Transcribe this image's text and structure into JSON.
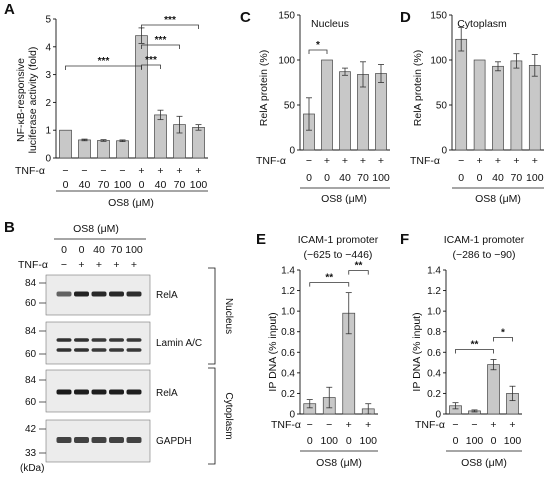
{
  "figure": {
    "condition_rows": {
      "tnf_label": "TNF-α",
      "tnf_4": [
        "−",
        "−",
        "+",
        "+"
      ],
      "tnf_5": [
        "−",
        "+",
        "+",
        "+",
        "+"
      ],
      "tnf_8": [
        "−",
        "−",
        "−",
        "−",
        "+",
        "+",
        "+",
        "+"
      ],
      "os8_4": [
        "0",
        "100",
        "0",
        "100"
      ],
      "os8_5": [
        "0",
        "0",
        "40",
        "70",
        "100"
      ],
      "os8_8": [
        "0",
        "40",
        "70",
        "100",
        "0",
        "40",
        "70",
        "100"
      ],
      "group_label": "OS8 (μM)"
    }
  },
  "chart_data": [
    {
      "id": "A",
      "panel_label": "A",
      "type": "bar",
      "title": "",
      "ylabel": "NF-κB-responsive luciferase activity (fold)",
      "ylabel_lines": [
        "NF-κB-responsive",
        "luciferase activity (fold)"
      ],
      "ylim": [
        0,
        5
      ],
      "yticks": [
        "0",
        "1",
        "2",
        "3",
        "4",
        "5"
      ],
      "values": [
        1.0,
        0.65,
        0.63,
        0.62,
        4.4,
        1.55,
        1.2,
        1.1
      ],
      "errors": [
        0.0,
        0.03,
        0.03,
        0.03,
        0.28,
        0.17,
        0.3,
        0.1
      ],
      "significance": [
        {
          "from": 0,
          "to": 4,
          "label": "***"
        },
        {
          "from": 4,
          "to": 5,
          "label": "***"
        },
        {
          "from": 4,
          "to": 6,
          "label": "***"
        },
        {
          "from": 4,
          "to": 7,
          "label": "***"
        }
      ]
    },
    {
      "id": "C",
      "panel_label": "C",
      "type": "bar",
      "title": "Nucleus",
      "ylabel": "RelA protein (%)",
      "ylim": [
        0,
        150
      ],
      "yticks": [
        "0",
        "50",
        "100",
        "150"
      ],
      "values": [
        40,
        100,
        87,
        84,
        85
      ],
      "errors": [
        18,
        0,
        4,
        14,
        10
      ],
      "significance": [
        {
          "from": 0,
          "to": 1,
          "label": "*"
        }
      ]
    },
    {
      "id": "D",
      "panel_label": "D",
      "type": "bar",
      "title": "Cytoplasm",
      "ylabel": "RelA protein (%)",
      "ylim": [
        0,
        150
      ],
      "yticks": [
        "0",
        "50",
        "100",
        "150"
      ],
      "values": [
        123,
        100,
        93,
        99,
        94
      ],
      "errors": [
        13,
        0,
        5,
        8,
        12
      ],
      "significance": []
    },
    {
      "id": "E",
      "panel_label": "E",
      "type": "bar",
      "title": "ICAM-1 promoter",
      "subtitle": "(−625 to −446)",
      "ylabel": "IP DNA (% input)",
      "ylim": [
        0,
        1.4
      ],
      "yticks": [
        "0",
        "0.2",
        "0.4",
        "0.6",
        "0.8",
        "1.0",
        "1.2",
        "1.4"
      ],
      "values": [
        0.1,
        0.16,
        0.98,
        0.05
      ],
      "errors": [
        0.04,
        0.1,
        0.2,
        0.05
      ],
      "significance": [
        {
          "from": 0,
          "to": 2,
          "label": "**"
        },
        {
          "from": 2,
          "to": 3,
          "label": "**"
        }
      ]
    },
    {
      "id": "F",
      "panel_label": "F",
      "type": "bar",
      "title": "ICAM-1 promoter",
      "subtitle": "(−286 to −90)",
      "ylabel": "IP DNA (% input)",
      "ylim": [
        0,
        1.4
      ],
      "yticks": [
        "0",
        "0.2",
        "0.4",
        "0.6",
        "0.8",
        "1.0",
        "1.2",
        "1.4"
      ],
      "values": [
        0.08,
        0.03,
        0.48,
        0.2
      ],
      "errors": [
        0.03,
        0.01,
        0.05,
        0.07
      ],
      "significance": [
        {
          "from": 0,
          "to": 2,
          "label": "**"
        },
        {
          "from": 2,
          "to": 3,
          "label": "*"
        }
      ]
    }
  ],
  "blot": {
    "panel_label": "B",
    "header": "OS8 (μM)",
    "os8": [
      "0",
      "0",
      "40",
      "70",
      "100"
    ],
    "tnf_label": "TNF-α",
    "tnf": [
      "−",
      "+",
      "+",
      "+",
      "+"
    ],
    "marker_unit": "(kDa)",
    "strips": [
      {
        "label": "RelA",
        "markers": [
          "84",
          "60"
        ]
      },
      {
        "label": "Lamin A/C",
        "markers": [
          "84",
          "60"
        ]
      },
      {
        "label": "RelA",
        "markers": [
          "84",
          "60"
        ]
      },
      {
        "label": "GAPDH",
        "markers": [
          "42",
          "33"
        ]
      }
    ],
    "band_intensity": [
      [
        0.55,
        0.95,
        0.9,
        0.9,
        0.88
      ],
      [
        0.85,
        0.85,
        0.8,
        0.8,
        0.82
      ],
      [
        1.0,
        0.98,
        0.98,
        0.98,
        0.98
      ],
      [
        0.75,
        0.75,
        0.75,
        0.75,
        0.75
      ]
    ],
    "fractions": [
      "Nucleus",
      "Cytoplasm"
    ]
  }
}
